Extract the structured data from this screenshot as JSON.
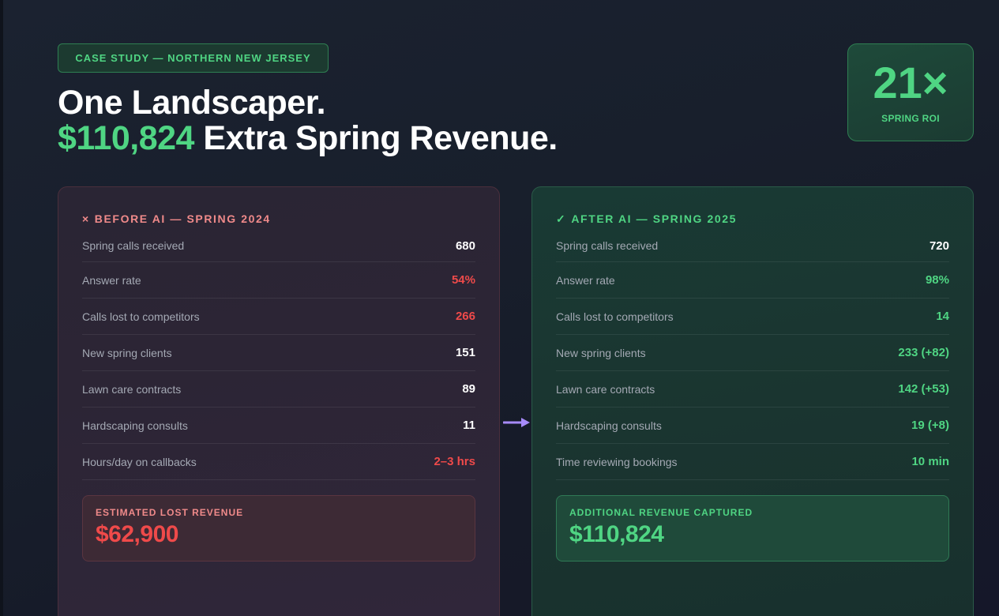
{
  "tag": "CASE STUDY — NORTHERN NEW JERSEY",
  "title": {
    "line1": "One Landscaper.",
    "line2_highlight": "$110,824",
    "line2_rest": " Extra Spring Revenue."
  },
  "roi": {
    "value": "21×",
    "label": "SPRING ROI"
  },
  "before": {
    "icon": "×",
    "heading": "BEFORE AI — SPRING 2024",
    "rows": [
      {
        "label": "Spring calls received",
        "value": "680",
        "tone": "white"
      },
      {
        "label": "Answer rate",
        "value": "54%",
        "tone": "red"
      },
      {
        "label": "Calls lost to competitors",
        "value": "266",
        "tone": "red"
      },
      {
        "label": "New spring clients",
        "value": "151",
        "tone": "white"
      },
      {
        "label": "Lawn care contracts",
        "value": "89",
        "tone": "white"
      },
      {
        "label": "Hardscaping consults",
        "value": "11",
        "tone": "white"
      },
      {
        "label": "Hours/day on callbacks",
        "value": "2–3 hrs",
        "tone": "red"
      }
    ],
    "total_label": "ESTIMATED LOST REVENUE",
    "total_value": "$62,900"
  },
  "after": {
    "icon": "✓",
    "heading": "AFTER AI — SPRING 2025",
    "rows": [
      {
        "label": "Spring calls received",
        "value": "720",
        "tone": "white"
      },
      {
        "label": "Answer rate",
        "value": "98%",
        "tone": "green"
      },
      {
        "label": "Calls lost to competitors",
        "value": "14",
        "tone": "green"
      },
      {
        "label": "New spring clients",
        "value": "233 (+82)",
        "tone": "green"
      },
      {
        "label": "Lawn care contracts",
        "value": "142 (+53)",
        "tone": "green"
      },
      {
        "label": "Hardscaping consults",
        "value": "19 (+8)",
        "tone": "green"
      },
      {
        "label": "Time reviewing bookings",
        "value": "10 min",
        "tone": "green"
      }
    ],
    "total_label": "ADDITIONAL REVENUE CAPTURED",
    "total_value": "$110,824"
  },
  "colors": {
    "accent_green": "#4fd583",
    "accent_red": "#ef4a4a",
    "arrow": "#a78bfa"
  },
  "icons": {
    "before_heading": "x-icon",
    "after_heading": "check-icon",
    "transition": "arrow-right-icon"
  }
}
